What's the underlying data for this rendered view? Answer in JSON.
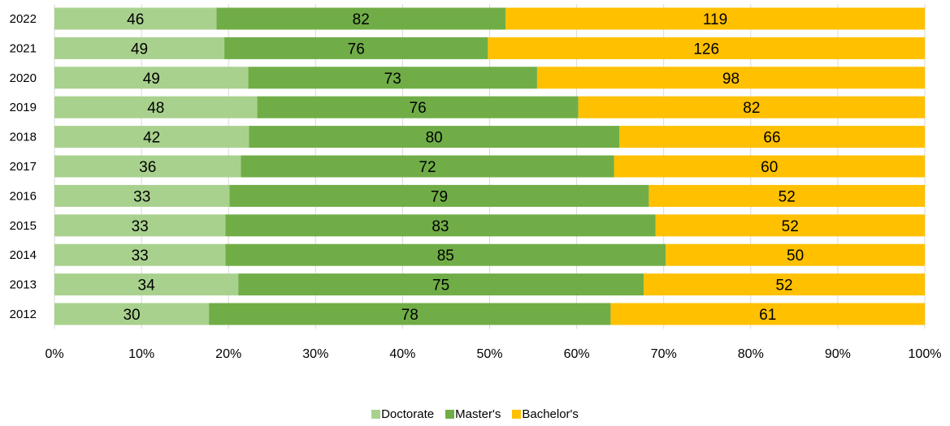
{
  "chart_data": {
    "type": "bar",
    "orientation": "horizontal",
    "stacking": "percent",
    "title": "",
    "xlabel": "",
    "ylabel": "",
    "categories": [
      "2022",
      "2021",
      "2020",
      "2019",
      "2018",
      "2017",
      "2016",
      "2015",
      "2014",
      "2013",
      "2012"
    ],
    "series": [
      {
        "name": "Doctorate",
        "color": "#a9d18e",
        "values": [
          46,
          49,
          49,
          48,
          42,
          36,
          33,
          33,
          33,
          34,
          30
        ]
      },
      {
        "name": "Master's",
        "color": "#70ad47",
        "values": [
          82,
          76,
          73,
          76,
          80,
          72,
          79,
          83,
          85,
          75,
          78
        ]
      },
      {
        "name": "Bachelor's",
        "color": "#ffc000",
        "values": [
          119,
          126,
          98,
          82,
          66,
          60,
          52,
          52,
          50,
          52,
          61
        ]
      }
    ],
    "xticks": [
      "0%",
      "10%",
      "20%",
      "30%",
      "40%",
      "50%",
      "60%",
      "70%",
      "80%",
      "90%",
      "100%"
    ],
    "xlim": [
      0,
      100
    ],
    "grid": "vertical",
    "legend_position": "bottom",
    "data_labels": true
  }
}
